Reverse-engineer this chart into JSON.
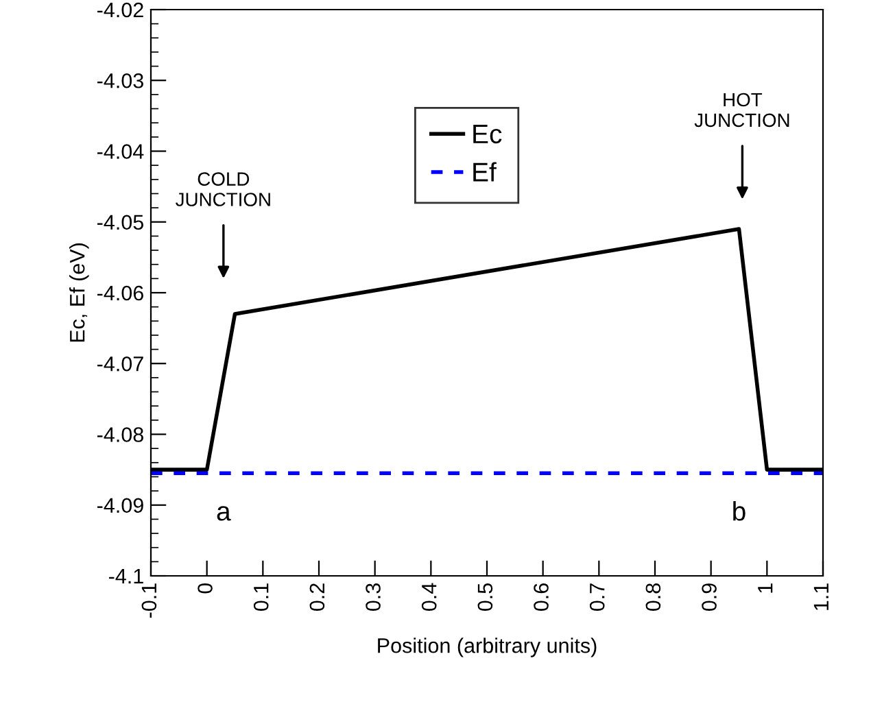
{
  "chart_data": {
    "type": "line",
    "xlabel": "Position (arbitrary units)",
    "ylabel": "Ec, Ef (eV)",
    "series": [
      {
        "name": "Ec",
        "color": "#000000",
        "x": [
          -0.1,
          0,
          0.05,
          0.95,
          1.0,
          1.1
        ],
        "values": [
          -4.085,
          -4.085,
          -4.063,
          -4.051,
          -4.085,
          -4.085
        ],
        "line_style": "solid"
      },
      {
        "name": "Ef",
        "color": "#0000ff",
        "x": [
          -0.1,
          1.1
        ],
        "values": [
          -4.0855,
          -4.0855
        ],
        "line_style": "dashed"
      }
    ],
    "xlim": [
      -0.1,
      1.1
    ],
    "xticks": [
      -0.1,
      0,
      0.1,
      0.2,
      0.3,
      0.4,
      0.5,
      0.6,
      0.7,
      0.8,
      0.9,
      1,
      1.1
    ],
    "ylim": [
      -4.1,
      -4.02
    ],
    "yticks": [
      {
        "value": -4.1,
        "label": "-4.1"
      },
      -4.09,
      -4.08,
      -4.07,
      -4.06,
      -4.05,
      -4.04,
      -4.03,
      -4.02
    ],
    "annotations": [
      "COLD\nJUNCTION",
      "HOT\nJUNCTION",
      "a",
      "b"
    ],
    "legend": "top",
    "grid": false,
    "marker": "none"
  }
}
